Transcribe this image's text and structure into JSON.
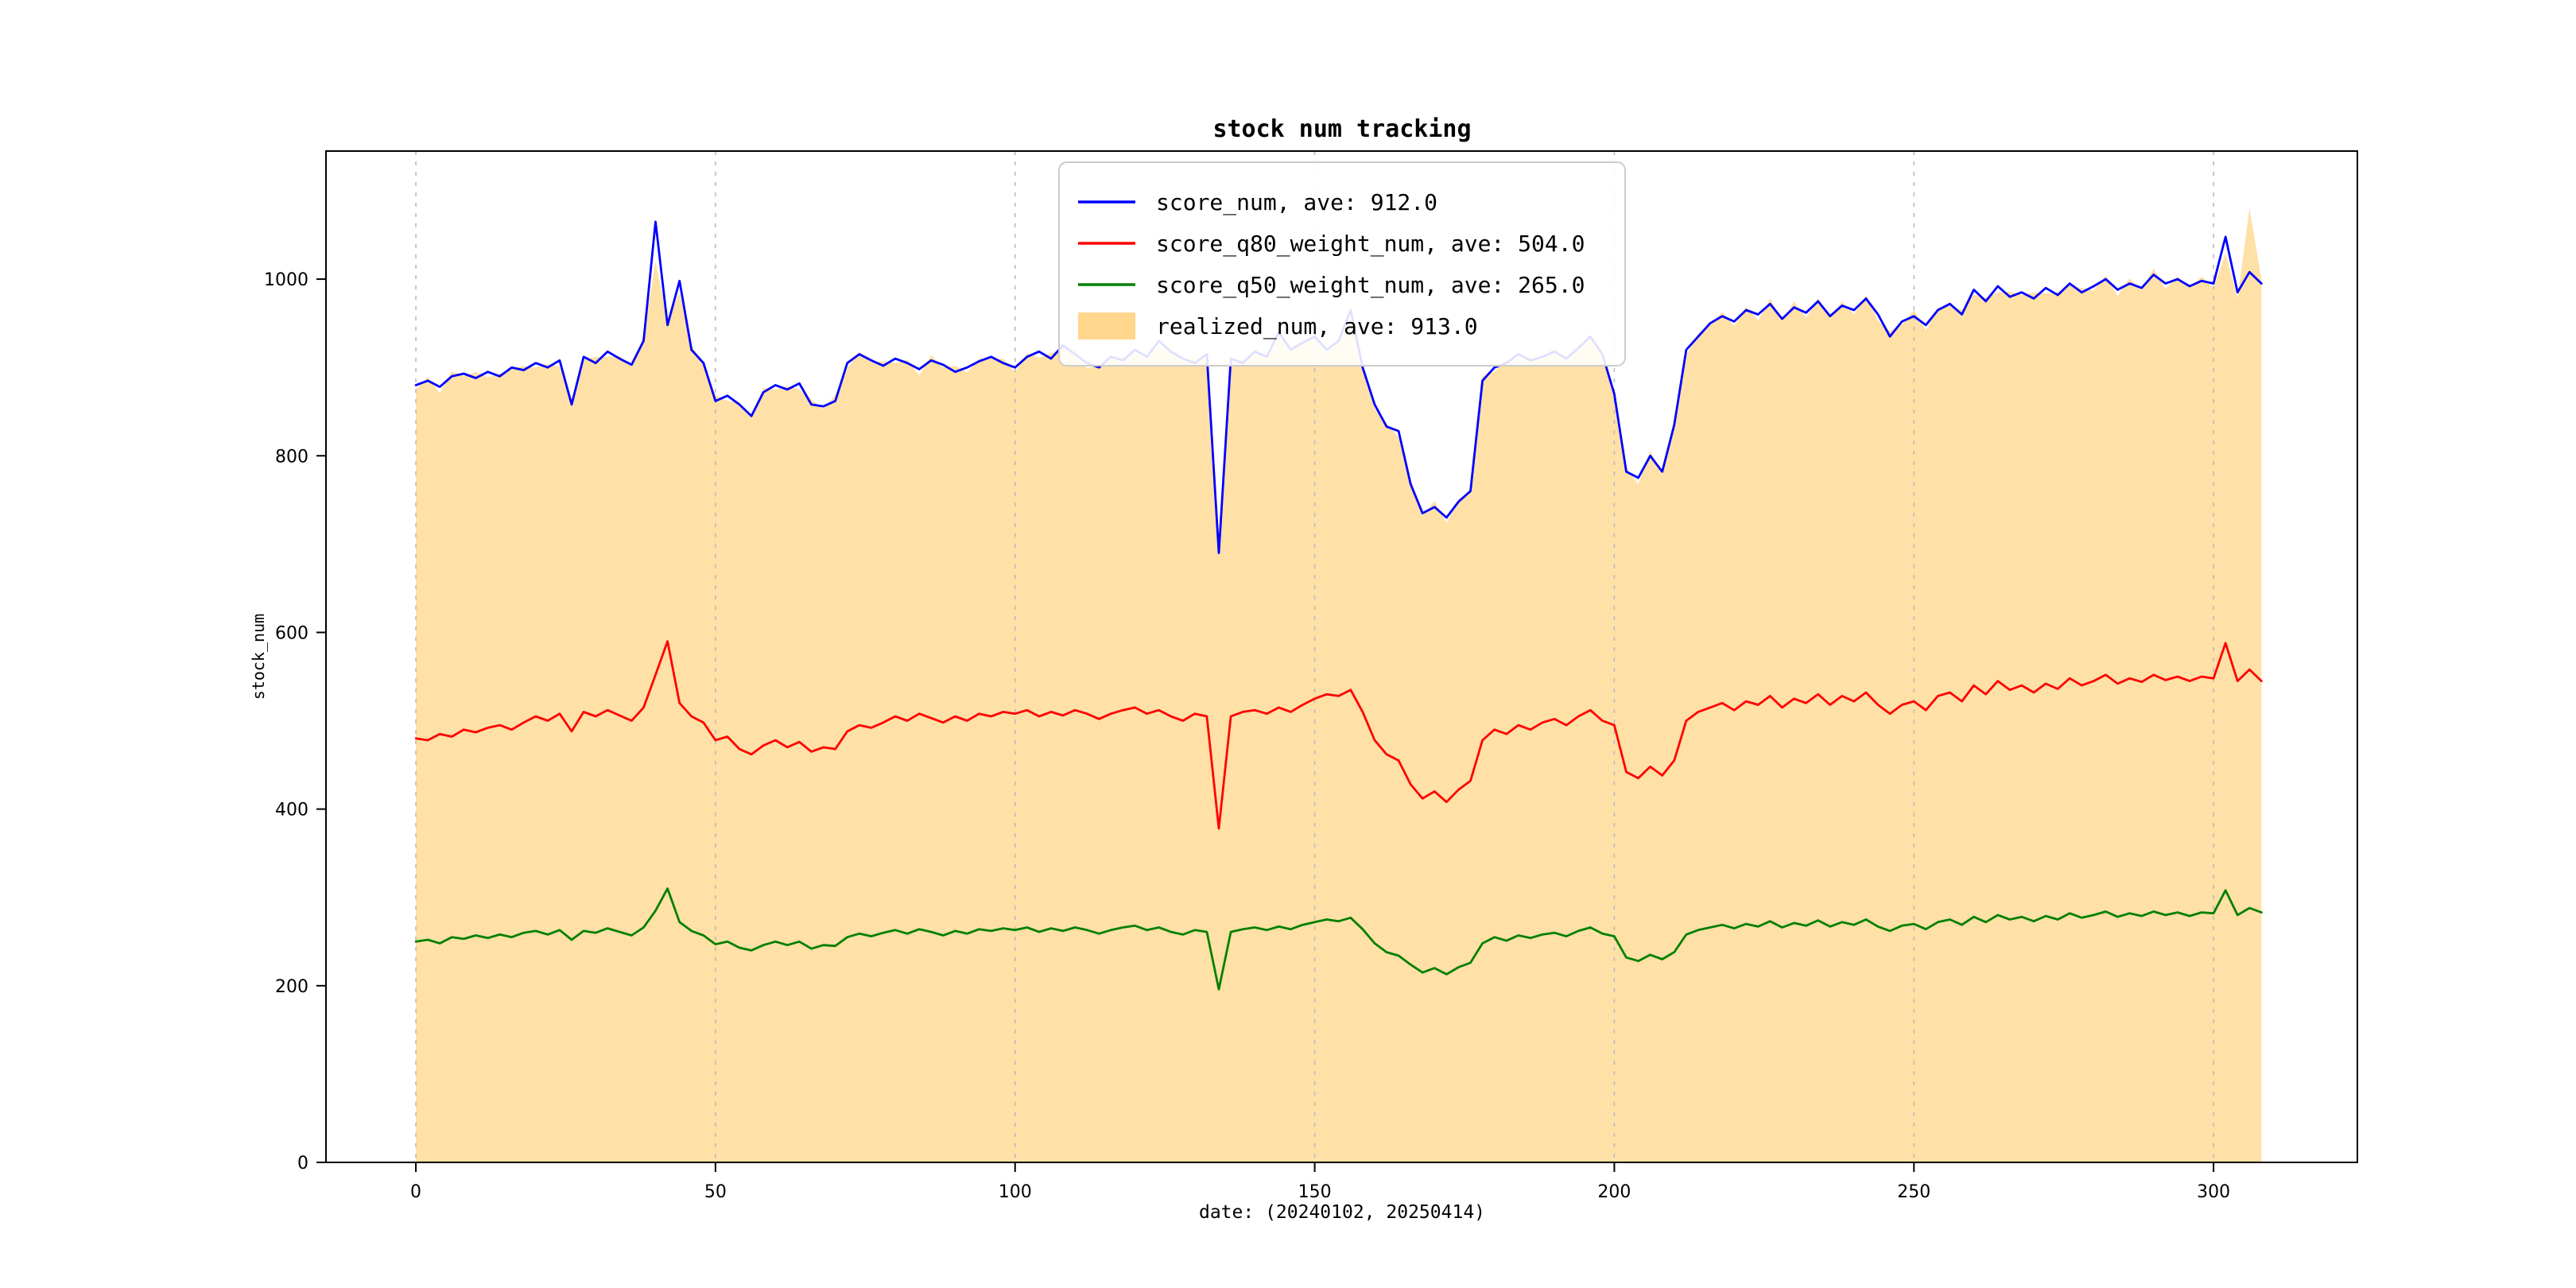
{
  "figure": {
    "background": "#ffffff",
    "spine_color": "#000000"
  },
  "chart_data": {
    "type": "line",
    "title": "stock num tracking",
    "xlabel": "date: (20240102, 20250414)",
    "ylabel": "stock_num",
    "xlim": [
      -15,
      324
    ],
    "ylim": [
      0,
      1145
    ],
    "xticks": [
      0,
      50,
      100,
      150,
      200,
      250,
      300
    ],
    "yticks": [
      0,
      200,
      400,
      600,
      800,
      1000
    ],
    "grid": {
      "axis": "x",
      "style": "dashed",
      "color": "#bbbbbb"
    },
    "legend_position": "upper center",
    "x": {
      "start": 0,
      "step": 2,
      "count": 155
    },
    "series": [
      {
        "name": "score_num, ave: 912.0",
        "type": "line",
        "color": "#0000ff",
        "values": [
          880,
          885,
          878,
          890,
          893,
          888,
          895,
          890,
          900,
          897,
          905,
          900,
          908,
          858,
          912,
          905,
          918,
          910,
          903,
          930,
          1065,
          948,
          998,
          920,
          905,
          862,
          868,
          858,
          845,
          872,
          880,
          875,
          882,
          858,
          856,
          862,
          905,
          915,
          908,
          902,
          910,
          905,
          898,
          908,
          903,
          895,
          900,
          907,
          912,
          905,
          900,
          912,
          918,
          910,
          925,
          915,
          905,
          900,
          912,
          908,
          920,
          912,
          930,
          918,
          910,
          905,
          915,
          690,
          910,
          905,
          918,
          912,
          940,
          920,
          928,
          935,
          920,
          930,
          965,
          900,
          858,
          833,
          828,
          768,
          735,
          742,
          730,
          748,
          760,
          885,
          900,
          905,
          915,
          908,
          912,
          918,
          910,
          922,
          935,
          915,
          870,
          782,
          775,
          800,
          782,
          835,
          920,
          935,
          950,
          958,
          952,
          965,
          960,
          972,
          955,
          968,
          962,
          975,
          958,
          970,
          965,
          978,
          960,
          935,
          952,
          958,
          948,
          965,
          972,
          960,
          988,
          975,
          992,
          980,
          985,
          978,
          990,
          982,
          995,
          985,
          992,
          1000,
          988,
          995,
          990,
          1005,
          995,
          1000,
          992,
          998,
          995,
          1048,
          985,
          1008,
          995
        ]
      },
      {
        "name": "score_q80_weight_num, ave: 504.0",
        "type": "line",
        "color": "#ff0000",
        "values": [
          480,
          478,
          485,
          482,
          490,
          487,
          492,
          495,
          490,
          498,
          505,
          500,
          508,
          488,
          510,
          505,
          512,
          506,
          500,
          515,
          552,
          590,
          520,
          505,
          498,
          478,
          482,
          468,
          462,
          472,
          478,
          470,
          476,
          465,
          470,
          468,
          488,
          495,
          492,
          498,
          505,
          500,
          508,
          503,
          498,
          505,
          500,
          508,
          505,
          510,
          508,
          512,
          505,
          510,
          506,
          512,
          508,
          502,
          508,
          512,
          515,
          508,
          512,
          505,
          500,
          508,
          505,
          378,
          505,
          510,
          512,
          508,
          515,
          510,
          518,
          525,
          530,
          528,
          535,
          510,
          478,
          462,
          455,
          428,
          412,
          420,
          408,
          422,
          432,
          478,
          490,
          485,
          495,
          490,
          498,
          502,
          495,
          505,
          512,
          500,
          495,
          442,
          435,
          448,
          438,
          455,
          500,
          510,
          515,
          520,
          512,
          522,
          518,
          528,
          515,
          525,
          520,
          530,
          518,
          528,
          522,
          532,
          518,
          508,
          518,
          522,
          512,
          528,
          532,
          522,
          540,
          530,
          545,
          535,
          540,
          532,
          542,
          536,
          548,
          540,
          545,
          552,
          542,
          548,
          544,
          552,
          546,
          550,
          545,
          550,
          548,
          588,
          545,
          558,
          545
        ]
      },
      {
        "name": "score_q50_weight_num, ave: 265.0",
        "type": "line",
        "color": "#008000",
        "values": [
          250,
          252,
          248,
          255,
          253,
          257,
          254,
          258,
          255,
          260,
          262,
          258,
          263,
          252,
          262,
          260,
          265,
          261,
          257,
          266,
          285,
          310,
          272,
          262,
          257,
          247,
          250,
          243,
          240,
          246,
          250,
          246,
          250,
          242,
          246,
          245,
          255,
          259,
          256,
          260,
          263,
          259,
          264,
          261,
          257,
          262,
          259,
          264,
          262,
          265,
          263,
          266,
          261,
          265,
          262,
          266,
          263,
          259,
          263,
          266,
          268,
          263,
          266,
          261,
          258,
          263,
          261,
          196,
          261,
          264,
          266,
          263,
          267,
          264,
          269,
          272,
          275,
          273,
          277,
          264,
          248,
          238,
          234,
          224,
          215,
          220,
          213,
          221,
          226,
          248,
          255,
          251,
          257,
          254,
          258,
          260,
          256,
          262,
          266,
          259,
          256,
          232,
          228,
          235,
          230,
          238,
          258,
          263,
          266,
          269,
          265,
          270,
          267,
          273,
          266,
          271,
          268,
          274,
          267,
          272,
          269,
          275,
          267,
          262,
          268,
          270,
          264,
          272,
          275,
          269,
          278,
          272,
          280,
          275,
          278,
          273,
          279,
          275,
          282,
          277,
          280,
          284,
          278,
          282,
          279,
          284,
          280,
          283,
          279,
          283,
          282,
          308,
          280,
          288,
          283
        ]
      },
      {
        "name": "realized_num, ave: 913.0",
        "type": "area",
        "color": "#ffa500",
        "fill_opacity": 0.35,
        "values": [
          875,
          889,
          871,
          896,
          890,
          895,
          889,
          893,
          898,
          902,
          900,
          904,
          901,
          864,
          909,
          912,
          912,
          913,
          901,
          935,
          1020,
          955,
          985,
          926,
          902,
          869,
          862,
          861,
          843,
          877,
          875,
          879,
          875,
          864,
          853,
          869,
          899,
          918,
          906,
          907,
          905,
          909,
          891,
          914,
          900,
          902,
          894,
          910,
          910,
          910,
          895,
          916,
          911,
          916,
          922,
          922,
          899,
          903,
          910,
          913,
          915,
          916,
          923,
          924,
          907,
          912,
          909,
          700,
          908,
          910,
          913,
          916,
          933,
          926,
          925,
          942,
          914,
          933,
          963,
          905,
          853,
          837,
          821,
          774,
          732,
          749,
          724,
          751,
          758,
          890,
          895,
          909,
          908,
          914,
          909,
          925,
          904,
          925,
          933,
          920,
          865,
          786,
          768,
          806,
          779,
          842,
          914,
          938,
          948,
          963,
          947,
          969,
          953,
          978,
          952,
          975,
          956,
          978,
          956,
          975,
          960,
          982,
          953,
          941,
          949,
          965,
          942,
          968,
          970,
          965,
          983,
          979,
          985,
          986,
          982,
          985,
          984,
          985,
          993,
          990,
          987,
          1004,
          981,
          1001,
          987,
          1012,
          989,
          1003,
          990,
          1003,
          990,
          1030,
          978,
          1080,
          1000
        ]
      }
    ]
  }
}
